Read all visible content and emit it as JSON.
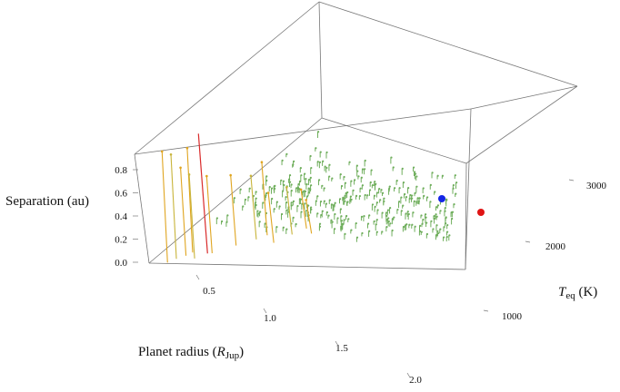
{
  "chart_data": {
    "type": "scatter",
    "dimension": "3d",
    "xlabel": "Planet radius (R_Jup)",
    "ylabel": "T_eq (K)",
    "zlabel": "Separation (au)",
    "labels": {
      "z_main": "Separation (au)",
      "x_main": "Planet radius (",
      "x_sym": "R",
      "x_sub": "Jup",
      "x_close": ")",
      "y_sym": "T",
      "y_sub": "eq",
      "y_unit": " (K)"
    },
    "xlim": [
      0.1,
      2.2
    ],
    "ylim": [
      0,
      3000
    ],
    "zlim": [
      0,
      0.8
    ],
    "x_ticks": [
      "0.5",
      "1.0",
      "1.5",
      "2.0"
    ],
    "y_ticks": [
      "1000",
      "2000",
      "3000"
    ],
    "z_ticks": [
      "0.0",
      "0.2",
      "0.4",
      "0.6",
      "0.8"
    ],
    "colors": {
      "points": "#6fae5c",
      "long_drop": "#e0a520",
      "special_line": "#d92b2b",
      "blue_marker": "#1426e6",
      "red_marker": "#e01414",
      "box": "#777777"
    },
    "markers": [
      {
        "name": "blue",
        "x": 1.9,
        "y": 2850,
        "z": 0.04
      },
      {
        "name": "red",
        "x": 2.15,
        "y": 2700,
        "z": 0.035
      }
    ],
    "drop_lines": [
      {
        "x": 0.11,
        "y": 200,
        "z": 0.75
      },
      {
        "x": 0.14,
        "y": 280,
        "z": 0.7
      },
      {
        "x": 0.18,
        "y": 350,
        "z": 0.58
      },
      {
        "x": 0.2,
        "y": 420,
        "z": 0.7
      },
      {
        "x": 0.26,
        "y": 300,
        "z": 0.55
      },
      {
        "x": 0.34,
        "y": 420,
        "z": 0.5
      },
      {
        "x": 0.45,
        "y": 600,
        "z": 0.45
      },
      {
        "x": 0.55,
        "y": 750,
        "z": 0.4
      },
      {
        "x": 0.6,
        "y": 850,
        "z": 0.47
      },
      {
        "x": 0.7,
        "y": 700,
        "z": 0.3
      },
      {
        "x": 0.78,
        "y": 900,
        "z": 0.28
      },
      {
        "x": 0.85,
        "y": 1050,
        "z": 0.22
      },
      {
        "x": 0.92,
        "y": 950,
        "z": 0.18
      }
    ],
    "special_line": {
      "x": 0.25,
      "y": 500,
      "z": 0.78
    },
    "point_cloud": {
      "count": 330,
      "x_range": [
        0.3,
        2.1
      ],
      "y_range": [
        600,
        2600
      ],
      "z_range": [
        0.0,
        0.12
      ]
    }
  }
}
